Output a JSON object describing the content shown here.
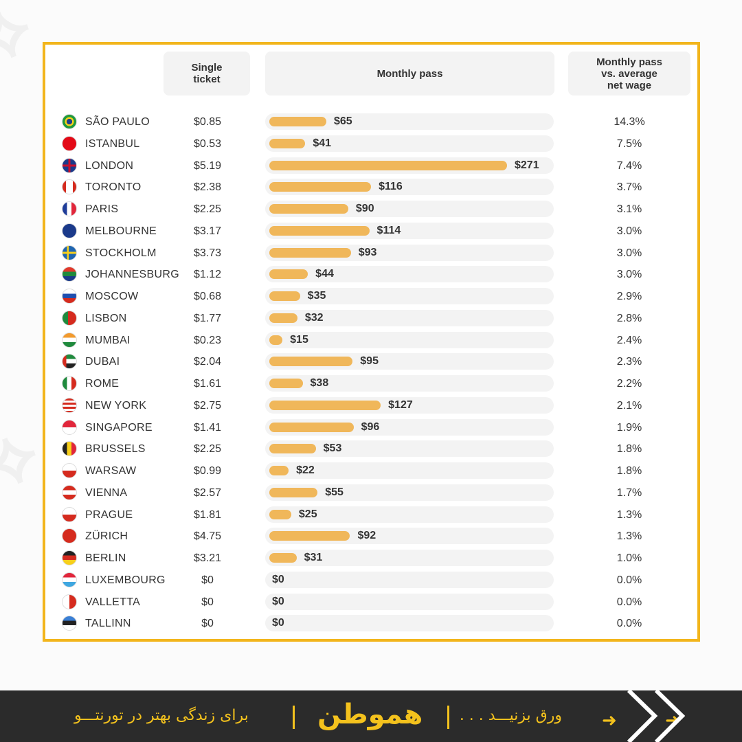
{
  "header": {
    "single_ticket": "Single\nticket",
    "monthly_pass": "Monthly pass",
    "ratio": "Monthly pass\nvs. average\nnet wage"
  },
  "colors": {
    "accent": "#f2b51c",
    "bar": "#f0b75a",
    "track": "#f3f3f3",
    "footer_bg": "#2b2b2b"
  },
  "chart_data": {
    "type": "bar",
    "title": "",
    "categories": [
      "SÃO PAULO",
      "ISTANBUL",
      "LONDON",
      "TORONTO",
      "PARIS",
      "MELBOURNE",
      "STOCKHOLM",
      "JOHANNESBURG",
      "MOSCOW",
      "LISBON",
      "MUMBAI",
      "DUBAI",
      "ROME",
      "NEW YORK",
      "SINGAPORE",
      "BRUSSELS",
      "WARSAW",
      "VIENNA",
      "PRAGUE",
      "ZÜRICH",
      "BERLIN",
      "LUXEMBOURG",
      "VALLETTA",
      "TALLINN"
    ],
    "values": [
      65,
      41,
      271,
      116,
      90,
      114,
      93,
      44,
      35,
      32,
      15,
      95,
      38,
      127,
      96,
      53,
      22,
      55,
      25,
      92,
      31,
      0,
      0,
      0
    ],
    "value_labels": [
      "$65",
      "$41",
      "$271",
      "$116",
      "$90",
      "$114",
      "$93",
      "$44",
      "$35",
      "$32",
      "$15",
      "$95",
      "$38",
      "$127",
      "$96",
      "$53",
      "$22",
      "$55",
      "$25",
      "$92",
      "$31",
      "$0",
      "$0",
      "$0"
    ],
    "single_ticket": [
      "$0.85",
      "$0.53",
      "$5.19",
      "$2.38",
      "$2.25",
      "$3.17",
      "$3.73",
      "$1.12",
      "$0.68",
      "$1.77",
      "$0.23",
      "$2.04",
      "$1.61",
      "$2.75",
      "$1.41",
      "$2.25",
      "$0.99",
      "$2.57",
      "$1.81",
      "$4.75",
      "$3.21",
      "$0",
      "$0",
      "$0"
    ],
    "pass_vs_wage": [
      "14.3%",
      "7.5%",
      "7.4%",
      "3.7%",
      "3.1%",
      "3.0%",
      "3.0%",
      "3.0%",
      "2.9%",
      "2.8%",
      "2.4%",
      "2.3%",
      "2.2%",
      "2.1%",
      "1.9%",
      "1.8%",
      "1.8%",
      "1.7%",
      "1.3%",
      "1.3%",
      "1.0%",
      "0.0%",
      "0.0%",
      "0.0%"
    ],
    "flags": [
      "flag-brazil-icon",
      "flag-turkey-icon",
      "flag-uk-icon",
      "flag-canada-icon",
      "flag-france-icon",
      "flag-australia-icon",
      "flag-sweden-icon",
      "flag-south-africa-icon",
      "flag-russia-icon",
      "flag-portugal-icon",
      "flag-india-icon",
      "flag-uae-icon",
      "flag-italy-icon",
      "flag-usa-icon",
      "flag-singapore-icon",
      "flag-belgium-icon",
      "flag-poland-icon",
      "flag-austria-icon",
      "flag-czechia-icon",
      "flag-switzerland-icon",
      "flag-germany-icon",
      "flag-luxembourg-icon",
      "flag-malta-icon",
      "flag-estonia-icon"
    ],
    "xlim": [
      0,
      271
    ],
    "xlabel": "",
    "ylabel": ""
  },
  "footer": {
    "tagline": "برای زندگی بهتر در تورنتـــو",
    "logo": "هموطن",
    "swipe": "ورق بزنیـــد . . .",
    "arrow_icon": "arrow-right-icon",
    "chevron_icon": "double-chevron-right-icon"
  }
}
